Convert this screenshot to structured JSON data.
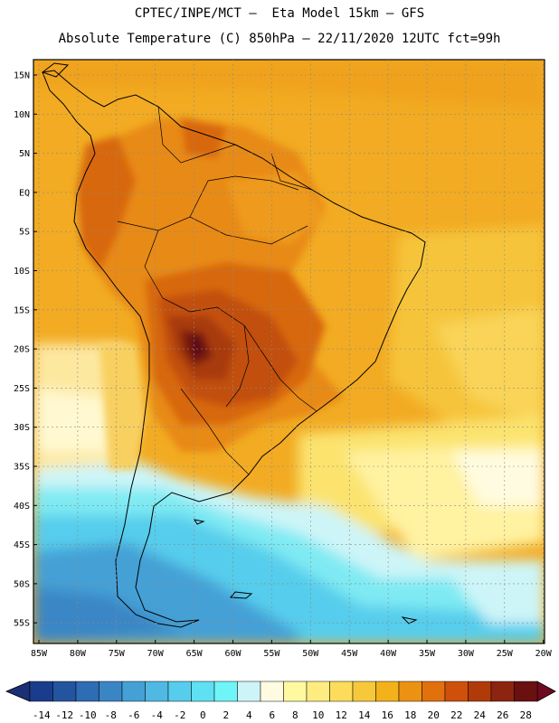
{
  "header": {
    "line1": "CPTEC/INPE/MCT –  Eta Model 15km – GFS",
    "line2": "Absolute Temperature (C) 850hPa – 22/11/2020 12UTC fct=99h"
  },
  "map": {
    "lat_labels": [
      "15N",
      "10N",
      "5N",
      "EQ",
      "5S",
      "10S",
      "15S",
      "20S",
      "25S",
      "30S",
      "35S",
      "40S",
      "45S",
      "50S",
      "55S"
    ],
    "lon_labels": [
      "85W",
      "80W",
      "75W",
      "70W",
      "65W",
      "60W",
      "55W",
      "50W",
      "45W",
      "40W",
      "35W",
      "30W",
      "25W",
      "20W"
    ]
  },
  "colorbar": {
    "labels": [
      "-14",
      "-12",
      "-10",
      "-8",
      "-6",
      "-4",
      "-2",
      "0",
      "2",
      "4",
      "6",
      "8",
      "10",
      "12",
      "14",
      "16",
      "18",
      "20",
      "22",
      "24",
      "26",
      "28"
    ],
    "colors": [
      "#1a3c8c",
      "#23559f",
      "#2e6cb3",
      "#3a86c5",
      "#45a0d6",
      "#4fb9e3",
      "#56cdec",
      "#5fe0f3",
      "#6ff5f8",
      "#cdf5f8",
      "#fffbe0",
      "#fff9a0",
      "#ffec80",
      "#fddc5c",
      "#f7c93a",
      "#f3b21a",
      "#ec9212",
      "#e2700c",
      "#cf500a",
      "#b03a08",
      "#8c2410",
      "#6a1010"
    ],
    "left_end_color": "#1a2f75",
    "right_end_color": "#6e0a20"
  }
}
